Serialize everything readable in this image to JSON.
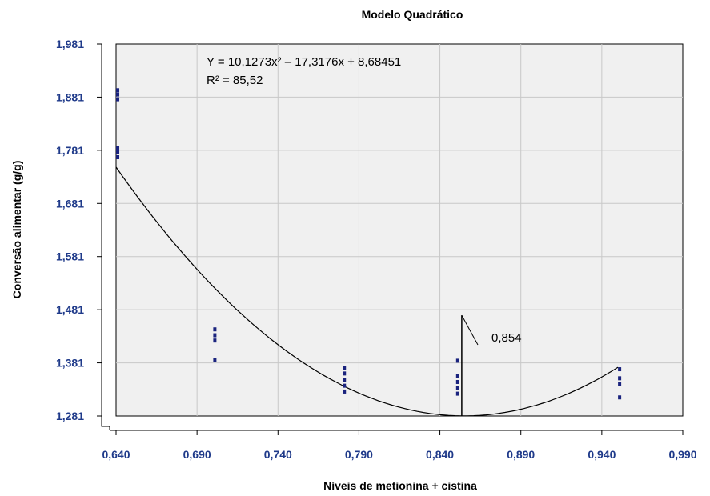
{
  "chart_data": {
    "type": "scatter",
    "title": "Modelo Quadrático",
    "xlabel": "Níveis de metionina + cistina",
    "ylabel": "Conversão alimentar (g/g)",
    "xlim": [
      0.64,
      0.99
    ],
    "ylim": [
      1.281,
      1.981
    ],
    "x_ticks": [
      "0,640",
      "0,690",
      "0,740",
      "0,790",
      "0,840",
      "0,890",
      "0,940",
      "0,990"
    ],
    "y_ticks": [
      "1,281",
      "1,381",
      "1,481",
      "1,581",
      "1,681",
      "1,781",
      "1,881",
      "1,981"
    ],
    "grid": true,
    "points": [
      {
        "x": 0.641,
        "y": 1.894
      },
      {
        "x": 0.641,
        "y": 1.886
      },
      {
        "x": 0.641,
        "y": 1.877
      },
      {
        "x": 0.641,
        "y": 1.786
      },
      {
        "x": 0.641,
        "y": 1.777
      },
      {
        "x": 0.641,
        "y": 1.768
      },
      {
        "x": 0.701,
        "y": 1.444
      },
      {
        "x": 0.701,
        "y": 1.433
      },
      {
        "x": 0.701,
        "y": 1.423
      },
      {
        "x": 0.701,
        "y": 1.386
      },
      {
        "x": 0.781,
        "y": 1.371
      },
      {
        "x": 0.781,
        "y": 1.361
      },
      {
        "x": 0.781,
        "y": 1.349
      },
      {
        "x": 0.781,
        "y": 1.338
      },
      {
        "x": 0.781,
        "y": 1.327
      },
      {
        "x": 0.851,
        "y": 1.385
      },
      {
        "x": 0.851,
        "y": 1.356
      },
      {
        "x": 0.851,
        "y": 1.345
      },
      {
        "x": 0.851,
        "y": 1.334
      },
      {
        "x": 0.851,
        "y": 1.323
      },
      {
        "x": 0.951,
        "y": 1.369
      },
      {
        "x": 0.951,
        "y": 1.352
      },
      {
        "x": 0.951,
        "y": 1.341
      },
      {
        "x": 0.951,
        "y": 1.316
      }
    ],
    "fit_curve": {
      "a": 10.1273,
      "b": -17.3176,
      "c": 8.68451,
      "x_range": [
        0.64,
        0.95
      ]
    },
    "vertical_marker": {
      "x": 0.854,
      "y_top": 1.481
    },
    "equation_label": "Y = 10,1273x² – 17,3176x + 8,68451",
    "r2_label": "R² = 85,52",
    "marker_label": "0,854",
    "colors": {
      "points": "#1a237e",
      "curve": "#000000",
      "plot_bg": "#f0f0f0",
      "grid": "#c8c8c8",
      "ticks": "#1f3a8a"
    }
  }
}
